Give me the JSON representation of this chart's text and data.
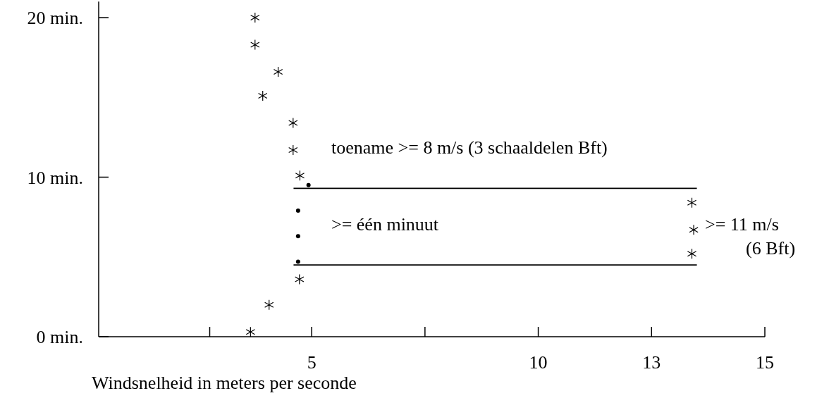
{
  "chart_data": {
    "type": "scatter",
    "xlabel": "Windsnelheid in meters per seconde",
    "xlim": [
      0.3,
      15
    ],
    "xticks": [
      {
        "value": 2.75,
        "label": null
      },
      5,
      {
        "value": 7.5,
        "label": null
      },
      10,
      {
        "value": 12.5,
        "label": "13"
      },
      {
        "value": 15,
        "label": "15"
      }
    ],
    "ylim": [
      0,
      21
    ],
    "yticks": [
      {
        "value": 0,
        "label": "0 min."
      },
      {
        "value": 10,
        "label": "10 min."
      },
      {
        "value": 20,
        "label": "20 min."
      }
    ],
    "color": "#000000",
    "series": [
      {
        "type": "scatter",
        "marker": "cross",
        "color": "#000000",
        "x": [
          3.75,
          3.75,
          4.26,
          3.92,
          4.59,
          4.59,
          4.74,
          4.73,
          4.06,
          3.65,
          13.39,
          13.43,
          13.39
        ],
        "values": [
          20.0,
          18.3,
          16.6,
          15.1,
          13.4,
          11.7,
          10.1,
          3.6,
          2.0,
          0.3,
          8.4,
          6.7,
          5.2
        ]
      },
      {
        "type": "scatter",
        "marker": "circle",
        "color": "#000000",
        "x": [
          4.93,
          4.7,
          4.7,
          4.7
        ],
        "values": [
          9.5,
          7.9,
          6.3,
          4.7
        ]
      },
      {
        "type": "line",
        "marker": "none",
        "line_style": "solid",
        "color": "#000000",
        "x": [
          4.6,
          13.5
        ],
        "values": [
          9.3,
          9.3
        ]
      },
      {
        "type": "line",
        "marker": "none",
        "line_style": "solid",
        "color": "#000000",
        "x": [
          4.6,
          13.5
        ],
        "values": [
          4.5,
          4.5
        ]
      }
    ],
    "annotations": [
      "toename >= 8 m/s (3 schaaldelen Bft)",
      ">= één minuut",
      ">= 11 m/s\n(6 Bft)"
    ]
  }
}
